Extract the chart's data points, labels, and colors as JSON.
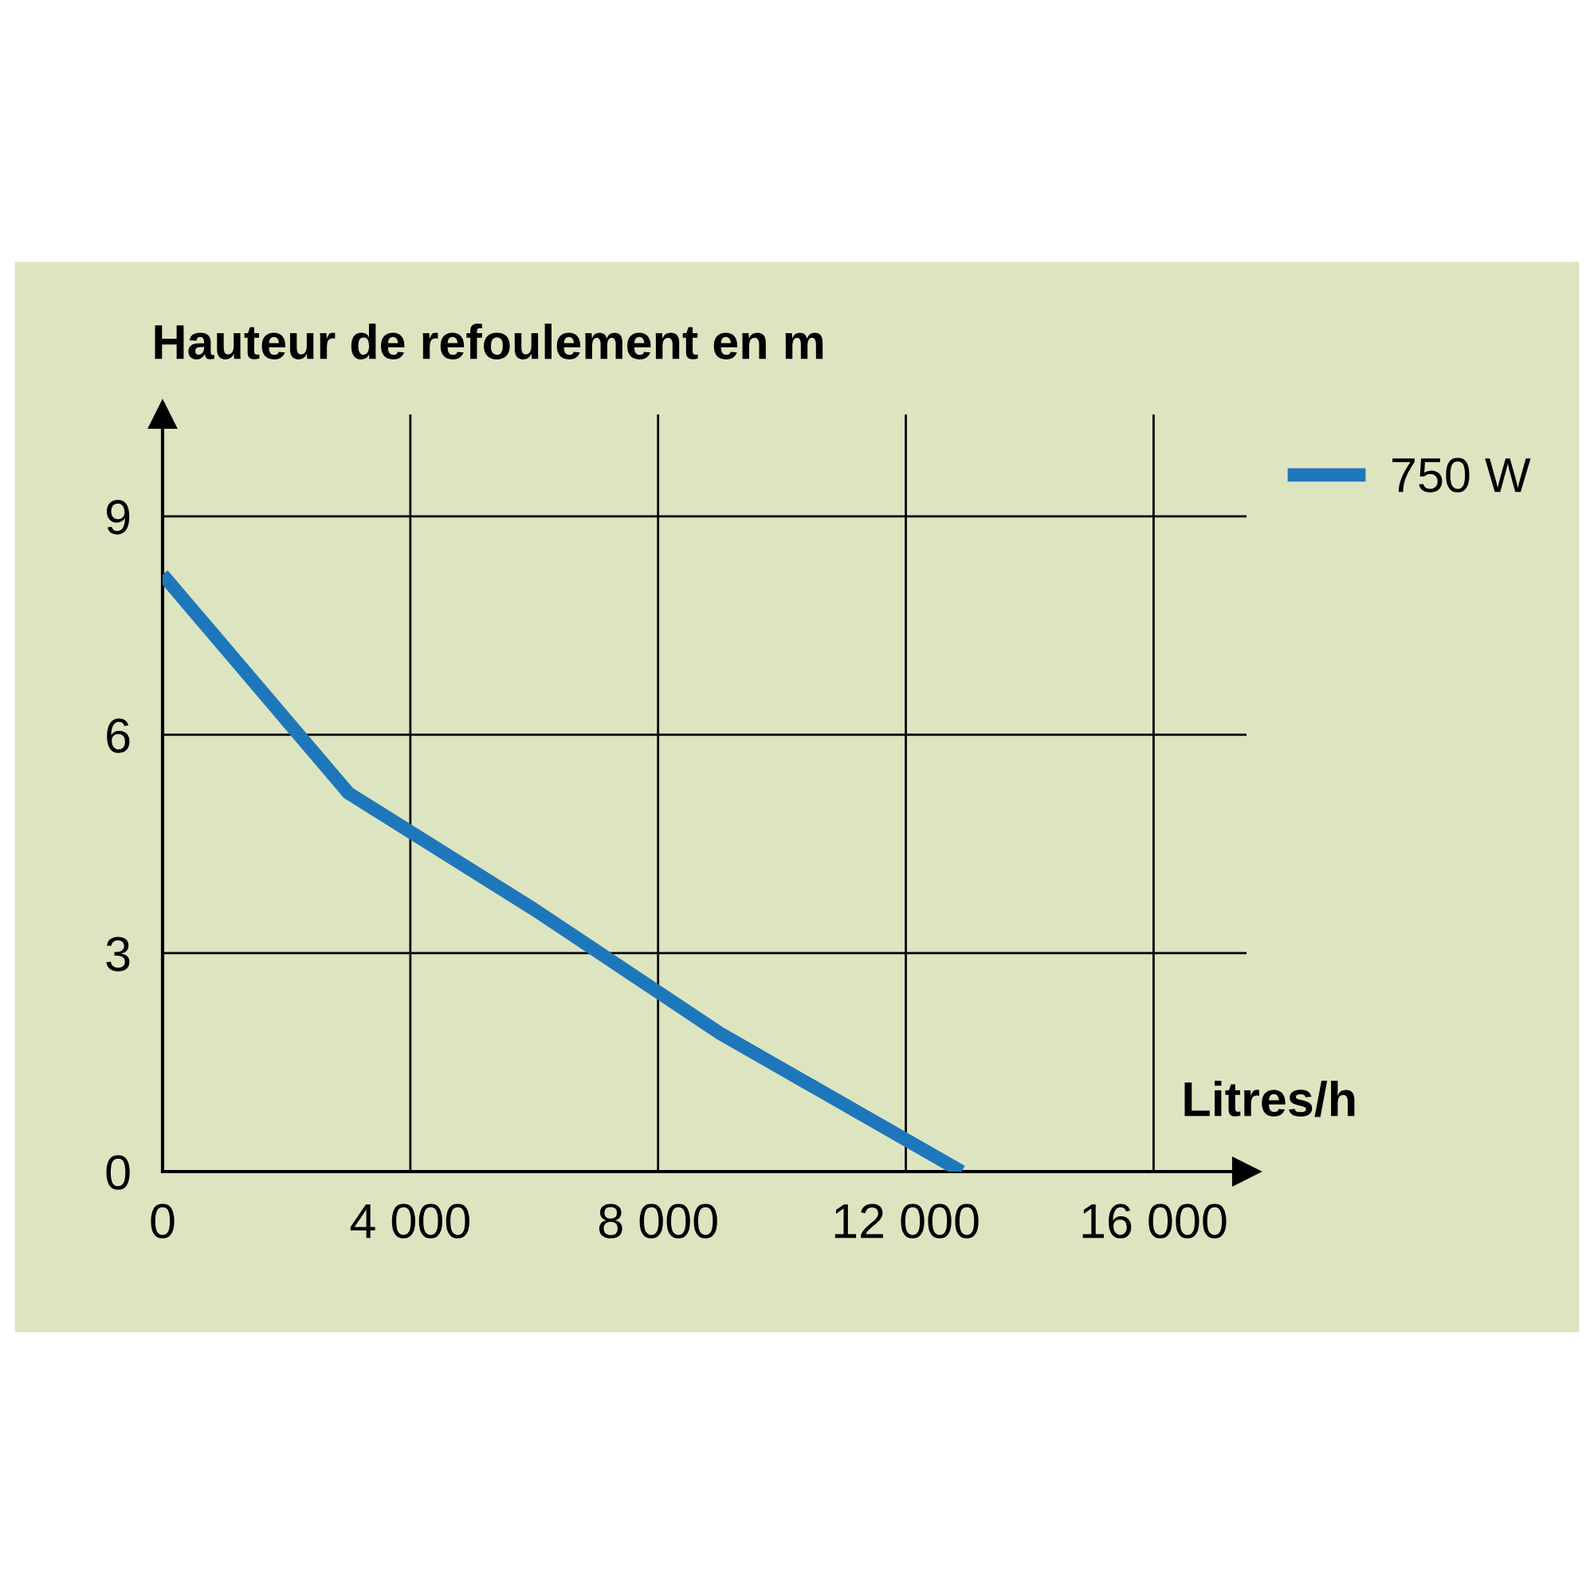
{
  "chart_data": {
    "type": "line",
    "xlabel": "Litres/h",
    "ylabel": "Hauteur de refoulement en m",
    "x": [
      0,
      3000,
      6000,
      9000,
      12900
    ],
    "series": [
      {
        "name": "750 W",
        "color": "#1f77bb",
        "values": [
          8.2,
          5.2,
          3.6,
          1.9,
          0
        ]
      }
    ],
    "xlim": [
      0,
      17500
    ],
    "ylim": [
      0,
      10.4
    ],
    "xticks": [
      0,
      {
        "value": 4000,
        "label": "4 000"
      },
      {
        "value": 8000,
        "label": "8 000"
      },
      {
        "value": 12000,
        "label": "12 000"
      },
      {
        "value": 16000,
        "label": "16 000"
      }
    ],
    "yticks": [
      0,
      3,
      6,
      9
    ],
    "grid": true,
    "legend": "top right",
    "marker": "none",
    "line_style": "solid"
  }
}
